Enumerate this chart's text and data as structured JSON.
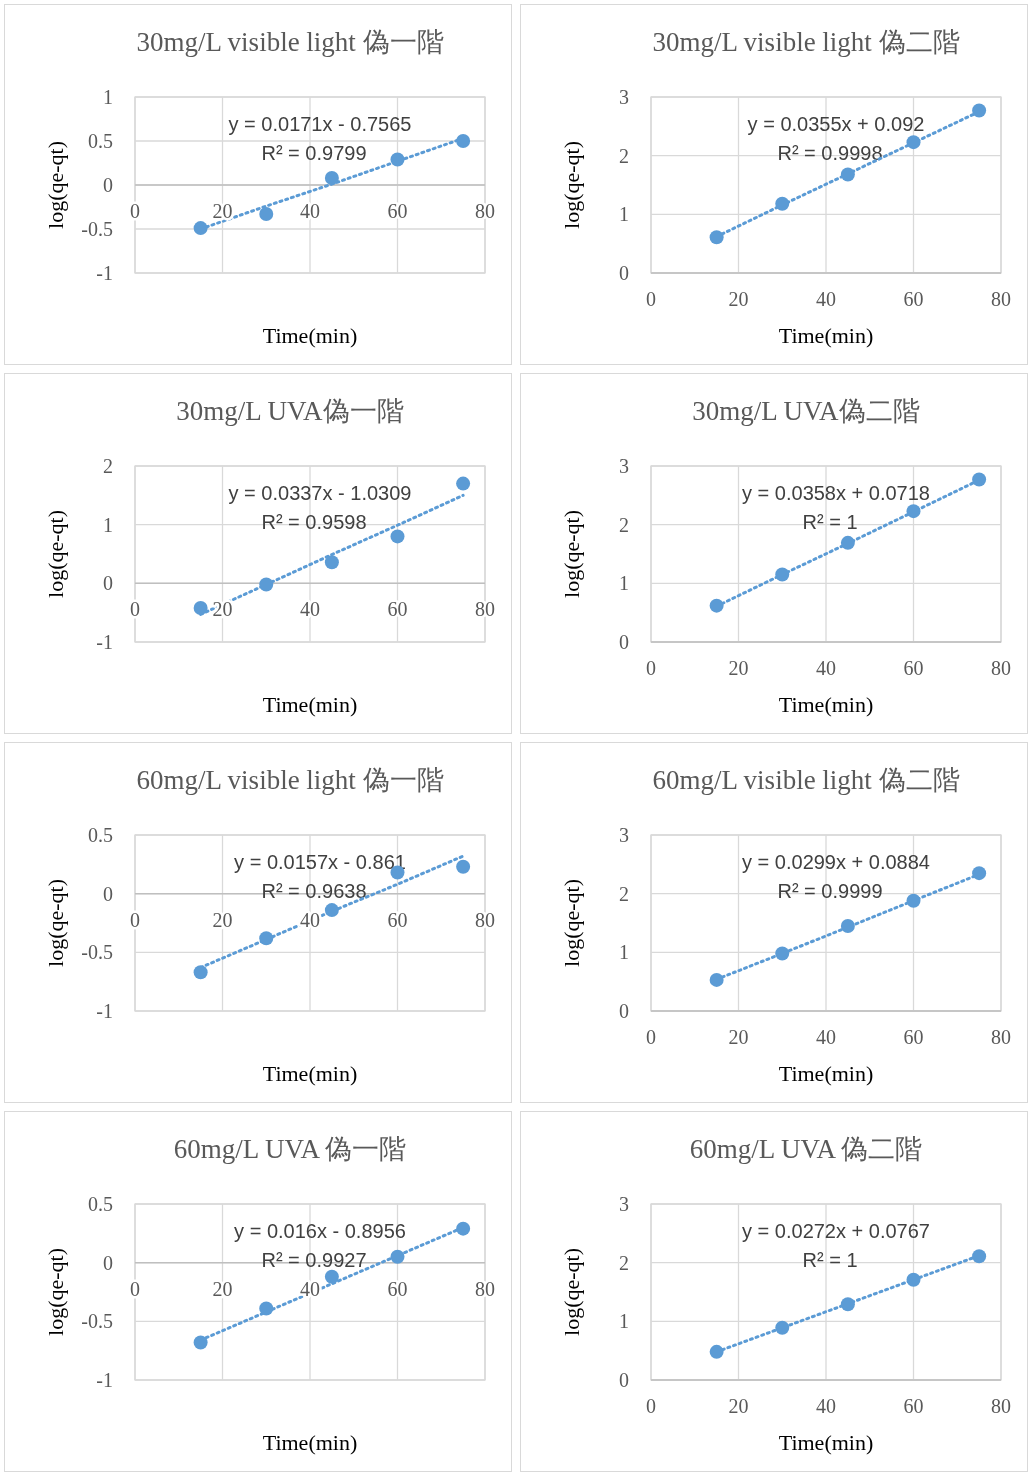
{
  "chart_data": [
    {
      "type": "scatter",
      "title": "30mg/L visible light 偽一階",
      "xlabel": "Time(min)",
      "ylabel": "log(qe-qt)",
      "x": [
        15,
        30,
        45,
        60,
        75
      ],
      "xlim": [
        0,
        80
      ],
      "xticks": [
        0,
        20,
        40,
        60,
        80
      ],
      "ylim": [
        -1,
        1
      ],
      "yticks": [
        -1,
        -0.5,
        0,
        0.5,
        1
      ],
      "grid": true,
      "series": [
        {
          "marker": "circle",
          "color": "#5b9bd5",
          "values": [
            -0.49,
            -0.33,
            0.08,
            0.29,
            0.5
          ]
        },
        {
          "type": "line",
          "color": "#5b9bd5",
          "line_style": "dotted",
          "values": [
            -0.5,
            -0.24,
            0.01,
            0.27,
            0.53
          ]
        }
      ],
      "annotations": [
        "y = 0.0171x - 0.7565",
        "R² = 0.9799"
      ]
    },
    {
      "type": "scatter",
      "title": "30mg/L visible light 偽二階",
      "xlabel": "Time(min)",
      "ylabel": "log(qe-qt)",
      "x": [
        15,
        30,
        45,
        60,
        75
      ],
      "xlim": [
        0,
        80
      ],
      "xticks": [
        0,
        20,
        40,
        60,
        80
      ],
      "ylim": [
        0,
        3
      ],
      "yticks": [
        0,
        1,
        2,
        3
      ],
      "grid": true,
      "series": [
        {
          "marker": "circle",
          "color": "#5b9bd5",
          "values": [
            0.61,
            1.18,
            1.68,
            2.23,
            2.77
          ]
        },
        {
          "type": "line",
          "color": "#5b9bd5",
          "line_style": "dotted",
          "values": [
            0.62,
            1.16,
            1.69,
            2.22,
            2.75
          ]
        }
      ],
      "annotations": [
        "y = 0.0355x + 0.092",
        "R² = 0.9998"
      ]
    },
    {
      "type": "scatter",
      "title": "30mg/L UVA偽一階",
      "xlabel": "Time(min)",
      "ylabel": "log(qe-qt)",
      "x": [
        15,
        30,
        45,
        60,
        75
      ],
      "xlim": [
        0,
        80
      ],
      "xticks": [
        0,
        20,
        40,
        60,
        80
      ],
      "ylim": [
        -1,
        2
      ],
      "yticks": [
        -1,
        0,
        1,
        2
      ],
      "grid": true,
      "series": [
        {
          "marker": "circle",
          "color": "#5b9bd5",
          "values": [
            -0.42,
            -0.02,
            0.36,
            0.8,
            1.7
          ]
        },
        {
          "type": "line",
          "color": "#5b9bd5",
          "line_style": "dotted",
          "values": [
            -0.53,
            -0.02,
            0.49,
            0.99,
            1.5
          ]
        }
      ],
      "annotations": [
        "y = 0.0337x - 1.0309",
        "R² = 0.9598"
      ]
    },
    {
      "type": "scatter",
      "title": "30mg/L UVA偽二階",
      "xlabel": "Time(min)",
      "ylabel": "log(qe-qt)",
      "x": [
        15,
        30,
        45,
        60,
        75
      ],
      "xlim": [
        0,
        80
      ],
      "xticks": [
        0,
        20,
        40,
        60,
        80
      ],
      "ylim": [
        0,
        3
      ],
      "yticks": [
        0,
        1,
        2,
        3
      ],
      "grid": true,
      "series": [
        {
          "marker": "circle",
          "color": "#5b9bd5",
          "values": [
            0.62,
            1.15,
            1.69,
            2.23,
            2.77
          ]
        },
        {
          "type": "line",
          "color": "#5b9bd5",
          "line_style": "dotted",
          "values": [
            0.61,
            1.15,
            1.68,
            2.22,
            2.76
          ]
        }
      ],
      "annotations": [
        "y = 0.0358x + 0.0718",
        "R² = 1"
      ]
    },
    {
      "type": "scatter",
      "title": "60mg/L visible light 偽一階",
      "xlabel": "Time(min)",
      "ylabel": "log(qe-qt)",
      "x": [
        15,
        30,
        45,
        60,
        75
      ],
      "xlim": [
        0,
        80
      ],
      "xticks": [
        0,
        20,
        40,
        60,
        80
      ],
      "ylim": [
        -1,
        0.5
      ],
      "yticks": [
        -1,
        -0.5,
        0,
        0.5
      ],
      "grid": true,
      "series": [
        {
          "marker": "circle",
          "color": "#5b9bd5",
          "values": [
            -0.67,
            -0.38,
            -0.14,
            0.18,
            0.23
          ]
        },
        {
          "type": "line",
          "color": "#5b9bd5",
          "line_style": "dotted",
          "values": [
            -0.63,
            -0.39,
            -0.15,
            0.08,
            0.32
          ]
        }
      ],
      "annotations": [
        "y = 0.0157x - 0.861",
        "R² = 0.9638"
      ]
    },
    {
      "type": "scatter",
      "title": "60mg/L visible light 偽二階",
      "xlabel": "Time(min)",
      "ylabel": "log(qe-qt)",
      "x": [
        15,
        30,
        45,
        60,
        75
      ],
      "xlim": [
        0,
        80
      ],
      "xticks": [
        0,
        20,
        40,
        60,
        80
      ],
      "ylim": [
        0,
        3
      ],
      "yticks": [
        0,
        1,
        2,
        3
      ],
      "grid": true,
      "series": [
        {
          "marker": "circle",
          "color": "#5b9bd5",
          "values": [
            0.53,
            0.98,
            1.45,
            1.88,
            2.35
          ]
        },
        {
          "type": "line",
          "color": "#5b9bd5",
          "line_style": "dotted",
          "values": [
            0.54,
            0.98,
            1.43,
            1.88,
            2.33
          ]
        }
      ],
      "annotations": [
        "y = 0.0299x + 0.0884",
        "R² = 0.9999"
      ]
    },
    {
      "type": "scatter",
      "title": "60mg/L UVA 偽一階",
      "xlabel": "Time(min)",
      "ylabel": "log(qe-qt)",
      "x": [
        15,
        30,
        45,
        60,
        75
      ],
      "xlim": [
        0,
        80
      ],
      "xticks": [
        0,
        20,
        40,
        60,
        80
      ],
      "ylim": [
        -1,
        0.5
      ],
      "yticks": [
        -1,
        -0.5,
        0,
        0.5
      ],
      "grid": true,
      "series": [
        {
          "marker": "circle",
          "color": "#5b9bd5",
          "values": [
            -0.68,
            -0.39,
            -0.12,
            0.05,
            0.29
          ]
        },
        {
          "type": "line",
          "color": "#5b9bd5",
          "line_style": "dotted",
          "values": [
            -0.66,
            -0.42,
            -0.18,
            0.06,
            0.3
          ]
        }
      ],
      "annotations": [
        "y = 0.016x - 0.8956",
        "R² = 0.9927"
      ]
    },
    {
      "type": "scatter",
      "title": "60mg/L UVA 偽二階",
      "xlabel": "Time(min)",
      "ylabel": "log(qe-qt)",
      "x": [
        15,
        30,
        45,
        60,
        75
      ],
      "xlim": [
        0,
        80
      ],
      "xticks": [
        0,
        20,
        40,
        60,
        80
      ],
      "ylim": [
        0,
        3
      ],
      "yticks": [
        0,
        1,
        2,
        3
      ],
      "grid": true,
      "series": [
        {
          "marker": "circle",
          "color": "#5b9bd5",
          "values": [
            0.48,
            0.89,
            1.29,
            1.71,
            2.11
          ]
        },
        {
          "type": "line",
          "color": "#5b9bd5",
          "line_style": "dotted",
          "values": [
            0.48,
            0.89,
            1.3,
            1.71,
            2.12
          ]
        }
      ],
      "annotations": [
        "y = 0.0272x + 0.0767",
        "R² = 1"
      ]
    }
  ]
}
